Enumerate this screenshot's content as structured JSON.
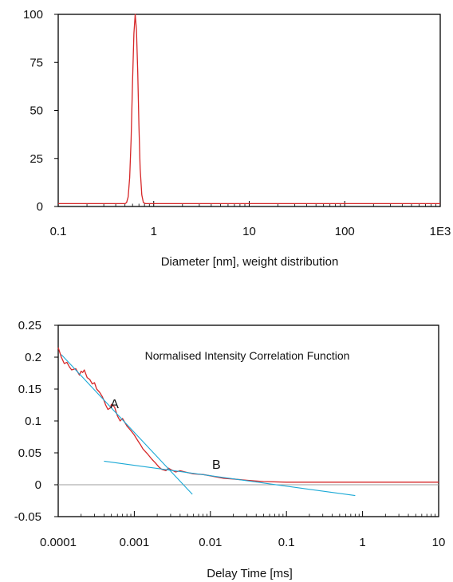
{
  "chart_data": [
    {
      "type": "line",
      "title": "",
      "xlabel": "Diameter [nm], weight distribution",
      "ylabel": "",
      "x_scale": "log",
      "xlim": [
        0.1,
        1000
      ],
      "ylim": [
        0,
        100
      ],
      "x_ticks": [
        {
          "value": 0.1,
          "label": "0.1"
        },
        {
          "value": 1,
          "label": "1"
        },
        {
          "value": 10,
          "label": "10"
        },
        {
          "value": 100,
          "label": "100"
        },
        {
          "value": 1000,
          "label": "1E3"
        }
      ],
      "y_ticks": [
        {
          "value": 0,
          "label": "0"
        },
        {
          "value": 25,
          "label": "25"
        },
        {
          "value": 50,
          "label": "50"
        },
        {
          "value": 75,
          "label": "75"
        },
        {
          "value": 100,
          "label": "100"
        }
      ],
      "grid": false,
      "series": [
        {
          "color": "#d62728",
          "points": [
            [
              0.1,
              1.5
            ],
            [
              0.5,
              1.5
            ],
            [
              0.52,
              2
            ],
            [
              0.54,
              5
            ],
            [
              0.56,
              15
            ],
            [
              0.58,
              35
            ],
            [
              0.6,
              65
            ],
            [
              0.62,
              90
            ],
            [
              0.64,
              100
            ],
            [
              0.66,
              92
            ],
            [
              0.68,
              70
            ],
            [
              0.7,
              42
            ],
            [
              0.72,
              20
            ],
            [
              0.75,
              6
            ],
            [
              0.78,
              2
            ],
            [
              0.82,
              1.5
            ],
            [
              1000,
              1.5
            ]
          ]
        }
      ]
    },
    {
      "type": "line",
      "title": "Normalised Intensity Correlation Function",
      "xlabel": "Delay Time [ms]",
      "ylabel": "",
      "x_scale": "log",
      "xlim": [
        0.0001,
        10
      ],
      "ylim": [
        -0.05,
        0.25
      ],
      "x_ticks": [
        {
          "value": 0.0001,
          "label": "0.0001"
        },
        {
          "value": 0.001,
          "label": "0.001"
        },
        {
          "value": 0.01,
          "label": "0.01"
        },
        {
          "value": 0.1,
          "label": "0.1"
        },
        {
          "value": 1,
          "label": "1"
        },
        {
          "value": 10,
          "label": "10"
        }
      ],
      "y_ticks": [
        {
          "value": -0.05,
          "label": "-0.05"
        },
        {
          "value": 0,
          "label": "0"
        },
        {
          "value": 0.05,
          "label": "0.05"
        },
        {
          "value": 0.1,
          "label": "0.1"
        },
        {
          "value": 0.15,
          "label": "0.15"
        },
        {
          "value": 0.2,
          "label": "0.2"
        },
        {
          "value": 0.25,
          "label": "0.25"
        }
      ],
      "grid": false,
      "zero_line": true,
      "annotations": [
        {
          "text": "A",
          "x": 0.00055,
          "y": 0.12
        },
        {
          "text": "B",
          "x": 0.012,
          "y": 0.025
        }
      ],
      "series": [
        {
          "color": "#d62728",
          "points": [
            [
              0.0001,
              0.215
            ],
            [
              0.00011,
              0.2
            ],
            [
              0.00012,
              0.19
            ],
            [
              0.00013,
              0.192
            ],
            [
              0.00014,
              0.185
            ],
            [
              0.00015,
              0.18
            ],
            [
              0.00017,
              0.182
            ],
            [
              0.00019,
              0.172
            ],
            [
              0.0002,
              0.178
            ],
            [
              0.00021,
              0.176
            ],
            [
              0.00022,
              0.18
            ],
            [
              0.00024,
              0.168
            ],
            [
              0.00026,
              0.165
            ],
            [
              0.00028,
              0.158
            ],
            [
              0.0003,
              0.16
            ],
            [
              0.00032,
              0.15
            ],
            [
              0.00035,
              0.145
            ],
            [
              0.00038,
              0.138
            ],
            [
              0.0004,
              0.132
            ],
            [
              0.00042,
              0.125
            ],
            [
              0.00045,
              0.118
            ],
            [
              0.00048,
              0.12
            ],
            [
              0.0005,
              0.126
            ],
            [
              0.00055,
              0.122
            ],
            [
              0.0006,
              0.108
            ],
            [
              0.00065,
              0.1
            ],
            [
              0.0007,
              0.104
            ],
            [
              0.0008,
              0.092
            ],
            [
              0.0009,
              0.085
            ],
            [
              0.001,
              0.078
            ],
            [
              0.0011,
              0.07
            ],
            [
              0.0012,
              0.063
            ],
            [
              0.0013,
              0.056
            ],
            [
              0.0015,
              0.048
            ],
            [
              0.0017,
              0.04
            ],
            [
              0.0019,
              0.034
            ],
            [
              0.0021,
              0.028
            ],
            [
              0.0023,
              0.024
            ],
            [
              0.0026,
              0.022
            ],
            [
              0.0028,
              0.026
            ],
            [
              0.003,
              0.024
            ],
            [
              0.0035,
              0.02
            ],
            [
              0.004,
              0.022
            ],
            [
              0.005,
              0.019
            ],
            [
              0.006,
              0.017
            ],
            [
              0.008,
              0.016
            ],
            [
              0.01,
              0.014
            ],
            [
              0.015,
              0.01
            ],
            [
              0.02,
              0.009
            ],
            [
              0.03,
              0.007
            ],
            [
              0.05,
              0.005
            ],
            [
              0.1,
              0.004
            ],
            [
              0.2,
              0.004
            ],
            [
              1,
              0.004
            ],
            [
              10,
              0.004
            ]
          ]
        },
        {
          "color": "#1ba9d6",
          "points": [
            [
              0.00011,
              0.204
            ],
            [
              0.0058,
              -0.015
            ]
          ]
        },
        {
          "color": "#1ba9d6",
          "points": [
            [
              0.0004,
              0.037
            ],
            [
              0.8,
              -0.017
            ]
          ]
        }
      ]
    }
  ]
}
